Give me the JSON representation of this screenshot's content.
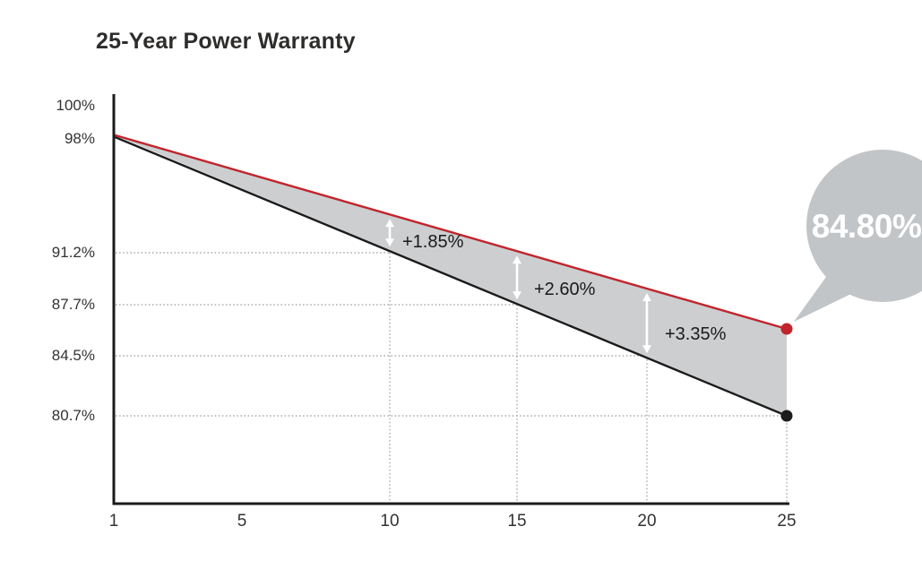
{
  "page": {
    "title": "25-Year Power Warranty"
  },
  "colors": {
    "accent_red": "#c2242c",
    "line_black": "#1b1b1b",
    "band_fill": "#cdced0",
    "callout_bubble": "#c2c5c7",
    "callout_text": "#ffffff",
    "grid": "#a8a8a8",
    "arrow_white": "#ffffff",
    "text_dark": "#2e2d2c",
    "background": "#ffffff"
  },
  "chart_data": {
    "type": "line",
    "title": "25-Year Power Warranty",
    "xlabel": "",
    "ylabel": "",
    "x_ticks": [
      "1",
      "5",
      "10",
      "15",
      "20",
      "25"
    ],
    "y_ticks": [
      "100%",
      "98%",
      "91.2%",
      "87.7%",
      "84.5%",
      "80.7%"
    ],
    "xlim": [
      0,
      25
    ],
    "ylim": [
      76,
      100
    ],
    "grid": "dotted guide lines at years 10/15/20/25 and at levels 91.2%/87.7%/84.5%/80.7%",
    "legend": "none",
    "series": [
      {
        "name": "red_line_warranty",
        "color": "#c2242c",
        "x": [
          1,
          10,
          15,
          20,
          25
        ],
        "values": [
          98,
          93.05,
          90.3,
          87.85,
          84.8
        ],
        "end_marker": "red dot"
      },
      {
        "name": "black_line_reference",
        "color": "#1b1b1b",
        "x": [
          1,
          10,
          15,
          20,
          25
        ],
        "values": [
          98,
          91.2,
          87.7,
          84.5,
          80.7
        ],
        "end_marker": "black dot"
      }
    ],
    "annotations": [
      {
        "year": 10,
        "label": "+1.85%"
      },
      {
        "year": 15,
        "label": "+2.60%"
      },
      {
        "year": 20,
        "label": "+3.35%"
      }
    ],
    "callout": {
      "label": "84.80%",
      "year": 25,
      "attached_to": "red_line_warranty"
    }
  }
}
